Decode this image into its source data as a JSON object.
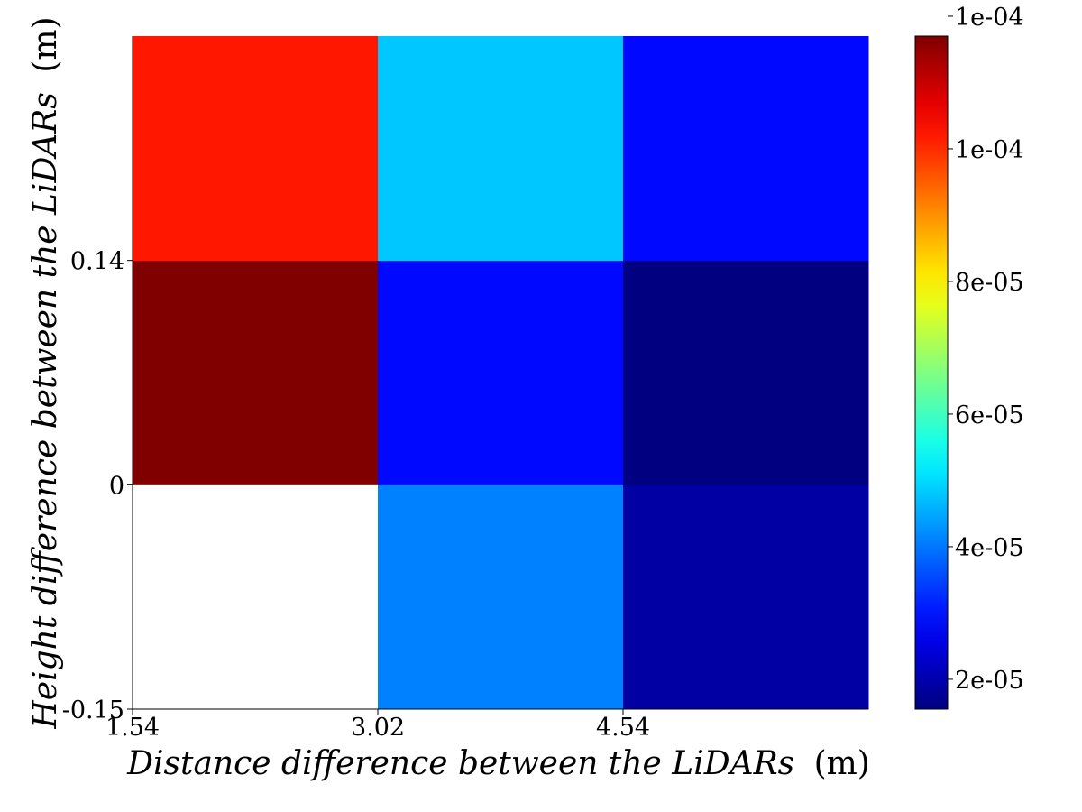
{
  "chart_data": {
    "type": "heatmap",
    "title": "",
    "xlabel": {
      "italic": "Distance difference between the LiDARs",
      "unit": "(m)"
    },
    "ylabel": {
      "italic": "Height difference between the LiDARs",
      "unit": "(m)"
    },
    "x_ticks": [
      "1.54",
      "3.02",
      "4.54"
    ],
    "y_ticks": [
      "-0.15",
      "0",
      "0.14"
    ],
    "x_bins": 3,
    "y_bins": 3,
    "cells": [
      [
        null,
        4.1e-05,
        1.9e-05
      ],
      [
        0.000117,
        2.9e-05,
        1.55e-05
      ],
      [
        0.000102,
        4.8e-05,
        2.9e-05
      ]
    ],
    "colorbar": {
      "colormap": "jet",
      "min": 1.55e-05,
      "max": 0.000117,
      "ticks": [
        2e-05,
        4e-05,
        6e-05,
        8e-05,
        0.0001,
        0.00012
      ],
      "tick_labels": [
        "2e-05",
        "4e-05",
        "6e-05",
        "8e-05",
        "1e-04",
        "1e-04"
      ]
    }
  }
}
